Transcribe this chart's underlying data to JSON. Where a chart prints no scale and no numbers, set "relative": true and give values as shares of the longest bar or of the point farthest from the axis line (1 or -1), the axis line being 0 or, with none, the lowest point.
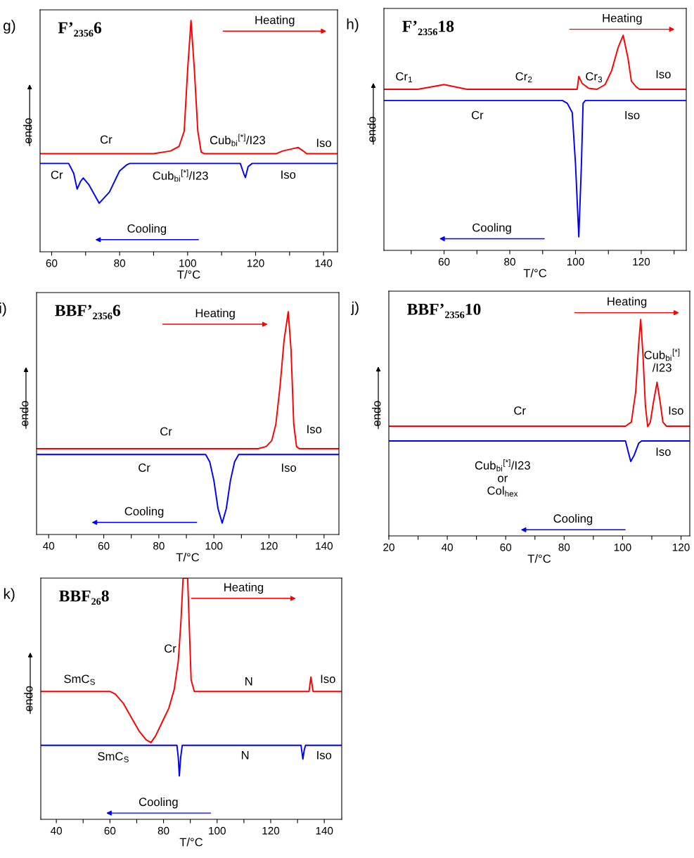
{
  "chart_data": [
    {
      "type": "line",
      "subtitle": "g)",
      "title": "F’₂₃₅₆6",
      "xlabel": "T/°C",
      "ylabel": "endo",
      "relative": true,
      "tick_labels": "x",
      "xlim": [
        56.6,
        144.1
      ],
      "xticks": [
        60,
        {
          "value": 70,
          "label": null
        },
        80,
        {
          "value": 90,
          "label": null
        },
        100,
        {
          "value": 110,
          "label": null
        },
        120,
        {
          "value": 130,
          "label": null
        },
        140
      ],
      "series": [
        {
          "color": "#ff0000",
          "x": [
            56.6,
            90,
            95,
            97.5,
            99,
            100,
            101,
            102,
            103,
            104,
            105,
            126,
            128,
            131,
            132.5,
            134,
            135,
            144.1
          ],
          "values": [
            0.424,
            0.424,
            0.436,
            0.456,
            0.522,
            0.785,
            1,
            0.785,
            0.522,
            0.431,
            0.424,
            0.424,
            0.436,
            0.446,
            0.451,
            0.436,
            0.424,
            0.424
          ]
        },
        {
          "color": "#0000ff",
          "x": [
            56.6,
            65,
            66.5,
            67.5,
            68.5,
            69.3,
            71,
            74,
            77,
            80,
            82,
            83,
            115.5,
            116.5,
            117,
            117.8,
            119,
            144.1
          ],
          "values": [
            0.382,
            0.382,
            0.339,
            0.271,
            0.304,
            0.319,
            0.289,
            0.21,
            0.258,
            0.35,
            0.375,
            0.382,
            0.382,
            0.339,
            0.321,
            0.368,
            0.382,
            0.382
          ]
        }
      ],
      "annotations": [
        "Heating",
        "Cooling",
        "Cr",
        "Cub$_{bi}$$^{[*]}$/I23",
        "Iso",
        "Cr",
        "Cub$_{bi}$$^{[*]}$/I23",
        "Iso"
      ]
    },
    {
      "type": "line",
      "subtitle": "h)",
      "title": "F’₂₃₅₆18",
      "xlabel": "T/°C",
      "ylabel": "endo",
      "relative": true,
      "tick_labels": "x",
      "xlim": [
        41.7,
        133.7
      ],
      "xticks": [
        {
          "value": 50,
          "label": null
        },
        60,
        {
          "value": 70,
          "label": null
        },
        80,
        {
          "value": 90,
          "label": null
        },
        100,
        {
          "value": 110,
          "label": null
        },
        120,
        {
          "value": 130,
          "label": null
        }
      ],
      "series": [
        {
          "color": "#ff0000",
          "x": [
            41.7,
            52,
            60,
            67,
            100.5,
            101,
            102,
            104,
            106.5,
            109,
            111,
            113,
            114.5,
            116,
            117,
            118.5,
            119.5,
            133.7
          ],
          "values": [
            0.749,
            0.749,
            0.771,
            0.749,
            0.749,
            0.809,
            0.777,
            0.754,
            0.749,
            0.771,
            0.836,
            0.945,
            1,
            0.891,
            0.787,
            0.76,
            0.749,
            0.749
          ]
        },
        {
          "color": "#0000ff",
          "x": [
            41.7,
            96,
            97.5,
            99,
            100,
            101,
            101.8,
            102.3,
            103,
            133.7
          ],
          "values": [
            0.697,
            0.697,
            0.684,
            0.641,
            0.401,
            0.063,
            0.401,
            0.684,
            0.697,
            0.697
          ]
        }
      ],
      "annotations": [
        "Heating",
        "Cooling",
        "Cr$_{1}$",
        "Cr$_{2}$",
        "Cr$_{3}$",
        "Iso",
        "Cr",
        "Iso"
      ]
    },
    {
      "type": "line",
      "subtitle": "i)",
      "title": "BBF’₂₃₅₆6",
      "xlabel": "T/°C",
      "ylabel": "endo",
      "relative": true,
      "tick_labels": "x",
      "xlim": [
        35.6,
        145.4
      ],
      "xticks": [
        40,
        {
          "value": 50,
          "label": null
        },
        60,
        {
          "value": 70,
          "label": null
        },
        80,
        {
          "value": 90,
          "label": null
        },
        100,
        {
          "value": 110,
          "label": null
        },
        120,
        {
          "value": 130,
          "label": null
        },
        140
      ],
      "series": [
        {
          "color": "#ff0000",
          "x": [
            35.6,
            116,
            119,
            121,
            122.5,
            124,
            125.5,
            127,
            128,
            129,
            130,
            131,
            145.4
          ],
          "values": [
            0.385,
            0.385,
            0.395,
            0.421,
            0.495,
            0.663,
            0.874,
            1,
            0.832,
            0.495,
            0.395,
            0.385,
            0.385
          ]
        },
        {
          "color": "#0000ff",
          "x": [
            35.6,
            97,
            98.5,
            100,
            101.5,
            103,
            104.5,
            106,
            107.5,
            109,
            145.4
          ],
          "values": [
            0.359,
            0.359,
            0.326,
            0.242,
            0.116,
            0.051,
            0.116,
            0.242,
            0.326,
            0.359,
            0.359
          ]
        }
      ],
      "annotations": [
        "Heating",
        "Cooling",
        "Cr",
        "Iso",
        "Cr",
        "Iso"
      ]
    },
    {
      "type": "line",
      "subtitle": "j)",
      "title": "BBF’₂₃₅₆10",
      "xlabel": "T/°C",
      "ylabel": "endo",
      "relative": true,
      "tick_labels": "x",
      "xlim": [
        20,
        123
      ],
      "xticks": [
        20,
        {
          "value": 30,
          "label": null
        },
        40,
        {
          "value": 50,
          "label": null
        },
        60,
        {
          "value": 70,
          "label": null
        },
        80,
        {
          "value": 90,
          "label": null
        },
        100,
        {
          "value": 110,
          "label": null
        },
        120
      ],
      "series": [
        {
          "color": "#ff0000",
          "x": [
            20,
            101,
            103,
            104.5,
            105.5,
            106.2,
            107,
            107.8,
            108.6,
            109.5,
            110.5,
            111.8,
            112.8,
            113.8,
            115,
            123
          ],
          "values": [
            0.507,
            0.507,
            0.526,
            0.667,
            0.884,
            1,
            0.83,
            0.603,
            0.505,
            0.526,
            0.613,
            0.71,
            0.624,
            0.526,
            0.507,
            0.507
          ]
        },
        {
          "color": "#0000ff",
          "x": [
            20,
            101,
            102,
            102.8,
            104,
            105.5,
            106.5,
            123
          ],
          "values": [
            0.439,
            0.439,
            0.385,
            0.344,
            0.374,
            0.428,
            0.439,
            0.439
          ]
        }
      ],
      "annotations": [
        "Heating",
        "Cooling",
        "Cr",
        "Cub$_{bi}$$^{[*]}$\n/I23",
        "Iso",
        "Cub$_{bi}$$^{[*]}$/I23\nor\nCol$_{hex}$",
        "Iso"
      ]
    },
    {
      "type": "line",
      "subtitle": "k)",
      "title": "BBF₂₆8",
      "xlabel": "T/°C",
      "ylabel": "endo",
      "relative": true,
      "tick_labels": "x",
      "xlim": [
        34.2,
        146.5
      ],
      "xticks": [
        40,
        {
          "value": 50,
          "label": null
        },
        60,
        {
          "value": 70,
          "label": null
        },
        80,
        {
          "value": 90,
          "label": null
        },
        100,
        {
          "value": 110,
          "label": null
        },
        120,
        {
          "value": 130,
          "label": null
        },
        140
      ],
      "series": [
        {
          "color": "#ff0000",
          "x": [
            34.2,
            60,
            62,
            65,
            68,
            71,
            73.5,
            75.3,
            77,
            79.5,
            82,
            84,
            85.5,
            86.5,
            87.3,
            89,
            89.7,
            90.3,
            91.5,
            134.3,
            135,
            135.8,
            146.5
          ],
          "values": [
            0.53,
            0.53,
            0.519,
            0.481,
            0.422,
            0.364,
            0.33,
            0.318,
            0.345,
            0.403,
            0.461,
            0.539,
            0.655,
            0.82,
            1,
            1,
            0.772,
            0.578,
            0.53,
            0.53,
            0.59,
            0.53,
            0.53
          ]
        },
        {
          "color": "#0000ff",
          "x": [
            34.2,
            85,
            85.5,
            85.9,
            86.4,
            87,
            131.3,
            131.8,
            132,
            132.5,
            133,
            146.5
          ],
          "values": [
            0.307,
            0.307,
            0.257,
            0.18,
            0.257,
            0.307,
            0.307,
            0.267,
            0.25,
            0.287,
            0.307,
            0.307
          ]
        }
      ],
      "annotations": [
        "Heating",
        "Cooling",
        "Cr",
        "SmC$_{S}$",
        "N",
        "Iso",
        "SmC$_{S}$",
        "N",
        "Iso"
      ]
    }
  ]
}
